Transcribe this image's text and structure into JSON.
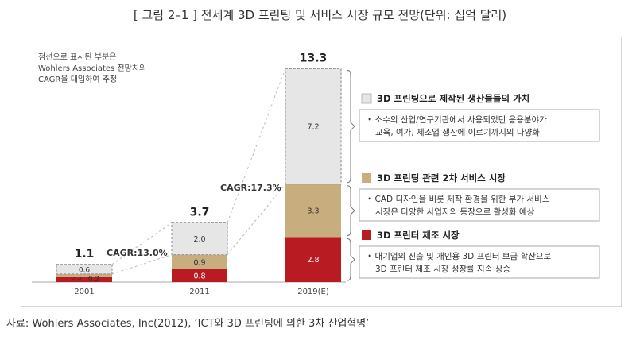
{
  "figure_title": "[ 그림 2–1 ] 전세계 3D 프린팅 및 서비스 시장 규모 전망(단위: 십억 달러)",
  "note": "점선으로 표시된 부분은\nWohlers Associates 전망치의\nCAGR을 대입하여 추정",
  "source": "자료: Wohlers Associates, Inc(2012), ‘ICT와 3D 프린팅에 의한 3차 산업혁명’",
  "colors": {
    "printer": "#b81c22",
    "service": "#c8ad7f",
    "products": "#e6e6e6",
    "border": "#999999"
  },
  "chart_data": {
    "type": "bar",
    "stacked": true,
    "categories": [
      "2001",
      "2011",
      "2019(E)"
    ],
    "totals": [
      "1.1",
      "3.7",
      "13.3"
    ],
    "series": [
      {
        "key": "printer",
        "values": [
          0.3,
          0.8,
          2.8
        ],
        "labels": [
          "0.3",
          "0.8",
          "2.8"
        ]
      },
      {
        "key": "service",
        "values": [
          0.2,
          0.9,
          3.3
        ],
        "labels": [
          "0.2",
          "0.9",
          "3.3"
        ]
      },
      {
        "key": "products",
        "values": [
          0.6,
          2.0,
          7.2
        ],
        "labels": [
          "0.6",
          "2.0",
          "7.2"
        ]
      }
    ],
    "cagr": [
      {
        "from": "2001",
        "to": "2011",
        "label": "CAGR:13.0%"
      },
      {
        "from": "2011",
        "to": "2019(E)",
        "label": "CAGR:17.3%"
      }
    ],
    "legend": [
      {
        "key": "products",
        "title": "3D 프린팅으로 제작된 생산물들의 가치",
        "description": [
          "• 소수의 산업/연구기관에서 사용되었던 응용분야가",
          "교육, 여가, 제조업 생산에 이르기까지의 다양화"
        ]
      },
      {
        "key": "service",
        "title": "3D 프린팅 관련 2차 서비스 시장",
        "description": [
          "• CAD 디자인을 비롯 제작 환경을 위한 부가 서비스",
          "시장은 다양한 사업자의 등장으로 활성화 예상"
        ]
      },
      {
        "key": "printer",
        "title": "3D 프린터 제조 시장",
        "description": [
          "• 대기업의 진출 및 개인용 3D 프린터 보급 확산으로",
          "3D 프린터 제조 시장 성장률 지속 상승"
        ]
      }
    ],
    "legend_placement": "right"
  }
}
